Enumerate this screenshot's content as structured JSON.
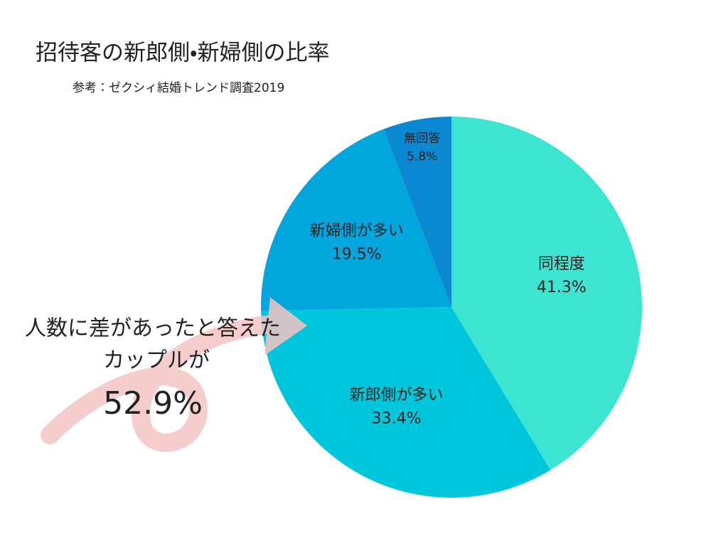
{
  "chart_data": {
    "type": "pie",
    "title": "招待客の新郎側・新婦側の比率",
    "subtitle": "参考：ゼクシィ結婚トレンド調査2019",
    "categories": [
      "同程度",
      "新郎側が多い",
      "新婦側が多い",
      "無回答"
    ],
    "values": [
      41.3,
      33.4,
      19.5,
      5.8
    ],
    "value_labels": [
      "41.3%",
      "33.4%",
      "19.5%",
      "5.8%"
    ],
    "colors": [
      "#3de4d2",
      "#00c6dc",
      "#00a6dc",
      "#0a88d2"
    ],
    "annotations": [
      "人数に差があったと答えた",
      "カップルが",
      "52.9%"
    ]
  }
}
